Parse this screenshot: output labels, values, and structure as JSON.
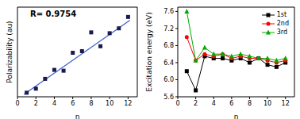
{
  "chart_data": [
    {
      "type": "scatter",
      "x_label": "n",
      "y_label": "Polarizability (au)",
      "annotation": "R= 0.9754",
      "x": [
        1,
        2,
        3,
        4,
        5,
        6,
        7,
        8,
        9,
        10,
        11,
        12
      ],
      "values": [
        250,
        500,
        1100,
        1650,
        1600,
        2700,
        2800,
        3950,
        3100,
        3900,
        4200,
        4900
      ],
      "color": "#1a1a4e",
      "marker": "square",
      "fit": {
        "x": [
          0.7,
          12.2
        ],
        "values": [
          150,
          4700
        ],
        "color": "#3a5fcd"
      },
      "xlim": [
        0,
        13
      ],
      "xticks": [
        0,
        2,
        4,
        6,
        8,
        10,
        12
      ],
      "ylim": [
        0,
        5500
      ],
      "tick_labels": "x"
    },
    {
      "type": "line",
      "x_label": "n",
      "y_label": "Excitation energy (eV)",
      "x": [
        1,
        2,
        3,
        4,
        5,
        6,
        7,
        8,
        9,
        10,
        11,
        12
      ],
      "series": [
        {
          "name": "1st",
          "color": "#000000",
          "marker": "square",
          "values": [
            6.2,
            5.75,
            6.55,
            6.5,
            6.5,
            6.45,
            6.5,
            6.4,
            6.5,
            6.35,
            6.3,
            6.4
          ]
        },
        {
          "name": "2nd",
          "color": "#ff0000",
          "marker": "circle",
          "values": [
            7.0,
            6.45,
            6.6,
            6.55,
            6.6,
            6.5,
            6.55,
            6.5,
            6.5,
            6.45,
            6.4,
            6.45
          ]
        },
        {
          "name": "3rd",
          "color": "#00aa00",
          "marker": "triangle",
          "values": [
            7.6,
            6.45,
            6.75,
            6.6,
            6.6,
            6.55,
            6.6,
            6.55,
            6.5,
            6.5,
            6.45,
            6.5
          ]
        }
      ],
      "xlim": [
        0,
        13
      ],
      "xticks": [
        0,
        2,
        4,
        6,
        8,
        10,
        12
      ],
      "ylim": [
        5.6,
        7.7
      ],
      "yticks": [
        5.6,
        {
          "value": 6,
          "label": "6.0"
        },
        6.4,
        6.8,
        7.2,
        7.6
      ],
      "legend": "upper right"
    }
  ]
}
